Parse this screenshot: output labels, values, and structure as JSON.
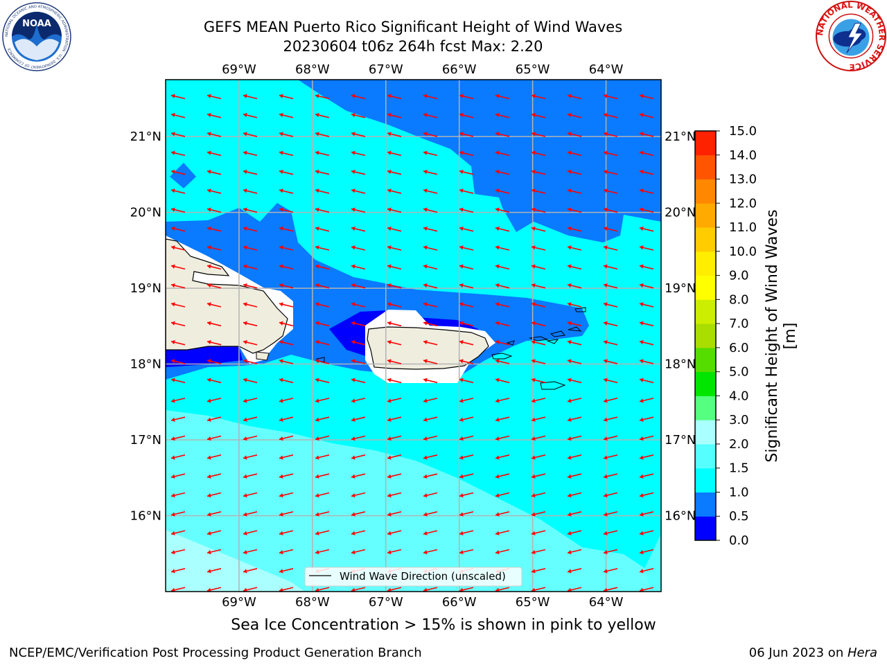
{
  "header": {
    "title_line1": "GEFS MEAN Puerto Rico Significant Height of Wind Waves",
    "title_line2": "20230604 t06z 264h fcst   Max: 2.20"
  },
  "map": {
    "lon_labels": [
      "69°W",
      "68°W",
      "67°W",
      "66°W",
      "65°W",
      "64°W"
    ],
    "lat_labels": [
      "21°N",
      "20°N",
      "19°N",
      "18°N",
      "17°N",
      "16°N"
    ],
    "lon_range": [
      -70.0,
      -63.25
    ],
    "lat_range": [
      15.0,
      21.75
    ],
    "legend_label": "Wind Wave Direction (unscaled)",
    "vector_color": "#ff0000",
    "land_color": "#efedde"
  },
  "colorbar": {
    "label": "Significant Height of Wind Waves [m]",
    "ticks": [
      "0.0",
      "0.5",
      "1.0",
      "1.5",
      "2.0",
      "3.0",
      "4.0",
      "5.0",
      "6.0",
      "7.0",
      "8.0",
      "9.0",
      "10.0",
      "11.0",
      "12.0",
      "13.0",
      "14.0",
      "15.0"
    ],
    "colors": [
      "#0000ff",
      "#0a7aff",
      "#00ffff",
      "#55ffff",
      "#aaffff",
      "#55ff80",
      "#00e600",
      "#55dd00",
      "#aadd00",
      "#ccee00",
      "#ffff00",
      "#ffee00",
      "#ffcc00",
      "#ffaa00",
      "#ff8800",
      "#ff5500",
      "#ff2200"
    ]
  },
  "footer": {
    "subtitle": "Sea Ice Concentration > 15% is shown in pink to yellow",
    "branch": "NCEP/EMC/Verification Post Processing Product Generation Branch",
    "date": "06 Jun 2023 on ",
    "machine": "Hera"
  },
  "logos": {
    "noaa_text": "NOAA",
    "noaa_ring_text": "NATIONAL OCEANIC AND ATMOSPHERIC ADMINISTRATION · U.S. DEPARTMENT OF COMMERCE",
    "nws_ring_text": "NATIONAL WEATHER SERVICE"
  }
}
